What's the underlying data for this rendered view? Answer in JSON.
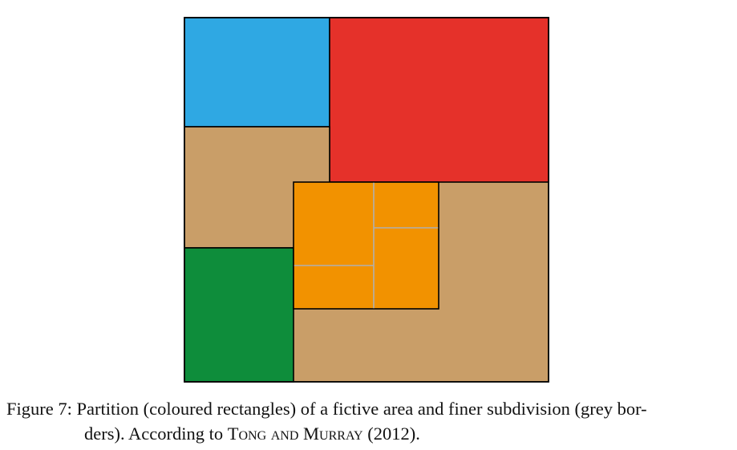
{
  "figure": {
    "colors": {
      "blue": "#2fa8e3",
      "red": "#e5312a",
      "tan": "#c99e68",
      "green": "#0e8d3b",
      "orange": "#f29200",
      "border": "#000000",
      "grey_border": "#b0b0b0"
    }
  },
  "caption": {
    "label": "Figure 7:",
    "text_part1": "Partition (coloured rectangles) of a fictive area and finer subdivision (grey bor-",
    "text_part2": "ders). According to",
    "authors": "Tong and Murray",
    "year": "(2012)."
  }
}
